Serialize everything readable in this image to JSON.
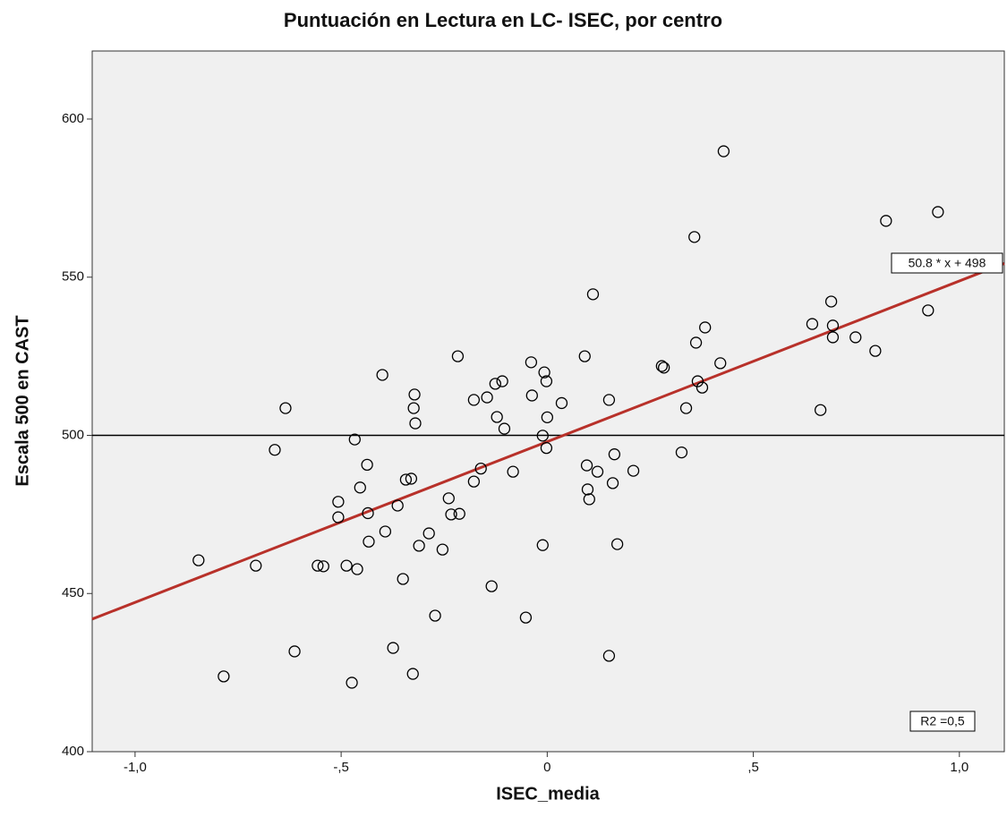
{
  "chart_data": {
    "type": "scatter",
    "title": "Puntuación en Lectura en LC- ISEC, por centro",
    "x_label": "ISEC_media",
    "y_label": "Escala 500 en CAST",
    "x": [
      -0.846,
      -0.785,
      -0.707,
      -0.661,
      -0.635,
      -0.613,
      -0.557,
      -0.543,
      -0.507,
      -0.507,
      -0.487,
      -0.474,
      -0.467,
      -0.461,
      -0.454,
      -0.437,
      -0.435,
      -0.433,
      -0.4,
      -0.393,
      -0.374,
      -0.363,
      -0.35,
      -0.343,
      -0.33,
      -0.324,
      -0.322,
      -0.32,
      -0.326,
      -0.311,
      -0.287,
      -0.272,
      -0.254,
      -0.239,
      -0.233,
      -0.217,
      -0.213,
      -0.178,
      -0.178,
      -0.161,
      -0.146,
      -0.135,
      -0.126,
      -0.122,
      -0.109,
      -0.104,
      -0.083,
      -0.052,
      -0.039,
      -0.037,
      -0.011,
      -0.011,
      -0.007,
      -0.002,
      -0.002,
      0.0,
      0.035,
      0.091,
      0.096,
      0.098,
      0.102,
      0.111,
      0.122,
      0.15,
      0.15,
      0.159,
      0.163,
      0.17,
      0.209,
      0.278,
      0.283,
      0.326,
      0.337,
      0.357,
      0.361,
      0.365,
      0.376,
      0.383,
      0.42,
      0.428,
      0.643,
      0.663,
      0.689,
      0.693,
      0.693,
      0.748,
      0.796,
      0.822,
      0.924,
      0.948
    ],
    "values": [
      460.5,
      423.8,
      458.8,
      495.4,
      508.6,
      431.7,
      458.8,
      458.6,
      479.0,
      474.1,
      458.8,
      421.8,
      498.7,
      457.7,
      483.5,
      490.7,
      475.4,
      466.4,
      519.1,
      469.6,
      432.8,
      477.8,
      454.6,
      486.0,
      486.3,
      508.6,
      512.9,
      503.8,
      424.6,
      465.1,
      469.0,
      443.0,
      463.9,
      480.1,
      475.0,
      525.0,
      475.2,
      485.4,
      511.2,
      489.5,
      512.0,
      452.3,
      516.3,
      505.8,
      517.1,
      502.1,
      488.5,
      442.4,
      523.1,
      512.6,
      465.3,
      499.9,
      519.9,
      517.1,
      496.0,
      505.7,
      510.2,
      525.0,
      490.5,
      482.9,
      479.8,
      544.6,
      488.5,
      511.2,
      430.3,
      484.9,
      494.0,
      465.6,
      488.8,
      521.9,
      521.4,
      494.6,
      508.6,
      562.7,
      529.3,
      517.1,
      515.1,
      534.1,
      522.8,
      589.8,
      535.2,
      508.0,
      542.3,
      534.7,
      531.0,
      531.0,
      526.7,
      567.8,
      539.5,
      570.6
    ],
    "xlim": [
      -1.104,
      1.109
    ],
    "ylim": [
      400,
      621.5
    ],
    "xticks": [
      {
        "value": -1,
        "label": "-1,0"
      },
      {
        "value": -0.5,
        "label": "-,5"
      },
      0,
      {
        "value": 0.5,
        "label": ",5"
      },
      {
        "value": 1,
        "label": "1,0"
      }
    ],
    "yticks": [
      400,
      450,
      500,
      550,
      600
    ],
    "reference_line": 500,
    "fit": {
      "slope": 50.8,
      "intercept": 498,
      "label": "50.8 * x + 498",
      "color": "#b8312a"
    },
    "r2_label": "R2 =0,5"
  }
}
